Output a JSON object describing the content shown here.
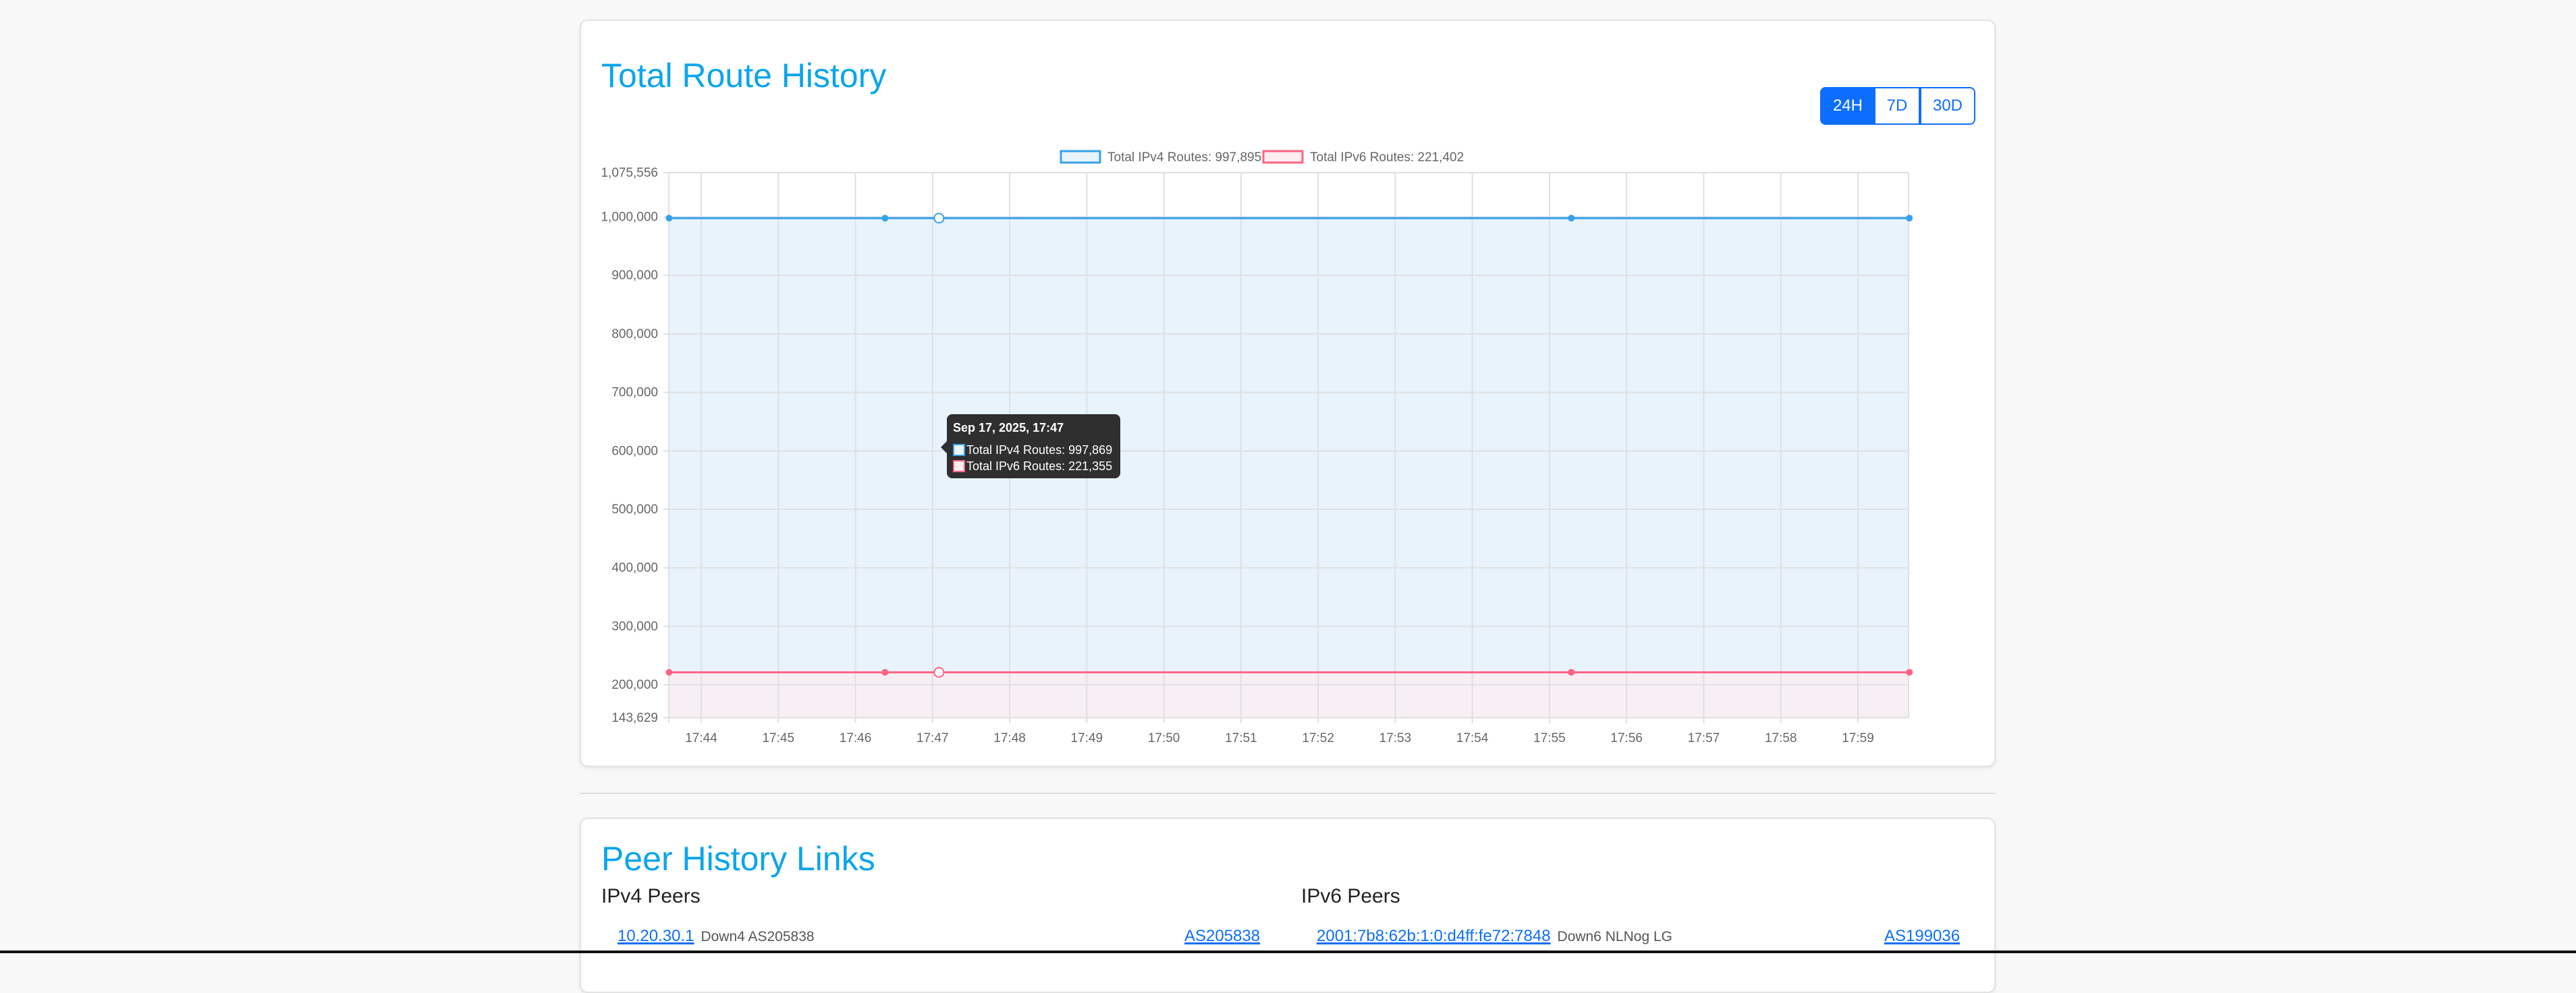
{
  "route_history": {
    "title": "Total Route History",
    "range_buttons": [
      {
        "label": "24H",
        "active": true
      },
      {
        "label": "7D",
        "active": false
      },
      {
        "label": "30D",
        "active": false
      }
    ],
    "tooltip": {
      "title": "Sep 17, 2025, 17:47",
      "lines": [
        "Total IPv4 Routes: 997,869",
        "Total IPv6 Routes: 221,355"
      ]
    }
  },
  "chart_data": {
    "type": "line",
    "legend_position": "top",
    "legend": [
      "Total IPv4 Routes: 997,895",
      "Total IPv6 Routes: 221,402"
    ],
    "x_ticks": [
      "17:44",
      "17:45",
      "17:46",
      "17:47",
      "17:48",
      "17:49",
      "17:50",
      "17:51",
      "17:52",
      "17:53",
      "17:54",
      "17:55",
      "17:56",
      "17:57",
      "17:58",
      "17:59"
    ],
    "y_ticks": [
      "1,075,556",
      "1,000,000",
      "900,000",
      "800,000",
      "700,000",
      "600,000",
      "500,000",
      "400,000",
      "300,000",
      "200,000",
      "143,629"
    ],
    "ylim": [
      143629,
      1075556
    ],
    "grid": true,
    "x": [
      "17:43:35",
      "17:46:23",
      "17:47:05",
      "17:55:17",
      "17:59:40"
    ],
    "series": [
      {
        "name": "Total IPv4 Routes",
        "color": "#36a2eb",
        "fill": "#e8f3fc",
        "values": [
          997850,
          997860,
          997869,
          997890,
          997895
        ]
      },
      {
        "name": "Total IPv6 Routes",
        "color": "#ff6384",
        "fill": "#fdeef1",
        "values": [
          221340,
          221350,
          221355,
          221390,
          221402
        ]
      }
    ]
  },
  "peer_links": {
    "title": "Peer History Links",
    "ipv4": {
      "heading": "IPv4 Peers",
      "peers": [
        {
          "address": "10.20.30.1",
          "desc": "Down4 AS205838",
          "asn": "AS205838"
        }
      ]
    },
    "ipv6": {
      "heading": "IPv6 Peers",
      "peers": [
        {
          "address": "2001:7b8:62b:1:0:d4ff:fe72:7848",
          "desc": "Down6 NLNog LG",
          "asn": "AS199036"
        }
      ]
    }
  }
}
